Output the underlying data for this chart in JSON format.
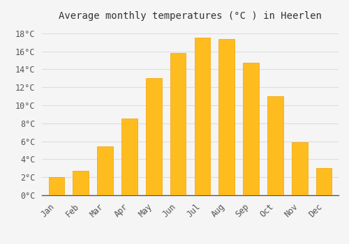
{
  "title": "Average monthly temperatures (°C ) in Heerlen",
  "months": [
    "Jan",
    "Feb",
    "Mar",
    "Apr",
    "May",
    "Jun",
    "Jul",
    "Aug",
    "Sep",
    "Oct",
    "Nov",
    "Dec"
  ],
  "values": [
    2.0,
    2.7,
    5.4,
    8.5,
    13.0,
    15.8,
    17.5,
    17.4,
    14.7,
    11.0,
    5.9,
    3.0
  ],
  "bar_color": "#FFBC1F",
  "bar_edge_color": "#F0A000",
  "background_color": "#f5f5f5",
  "plot_bg_color": "#f5f5f5",
  "grid_color": "#dddddd",
  "ylim": [
    0,
    19
  ],
  "yticks": [
    0,
    2,
    4,
    6,
    8,
    10,
    12,
    14,
    16,
    18
  ],
  "ytick_labels": [
    "0°C",
    "2°C",
    "4°C",
    "6°C",
    "8°C",
    "10°C",
    "12°C",
    "14°C",
    "16°C",
    "18°C"
  ],
  "title_fontsize": 10,
  "tick_fontsize": 8.5,
  "font_family": "monospace",
  "bar_width": 0.65
}
